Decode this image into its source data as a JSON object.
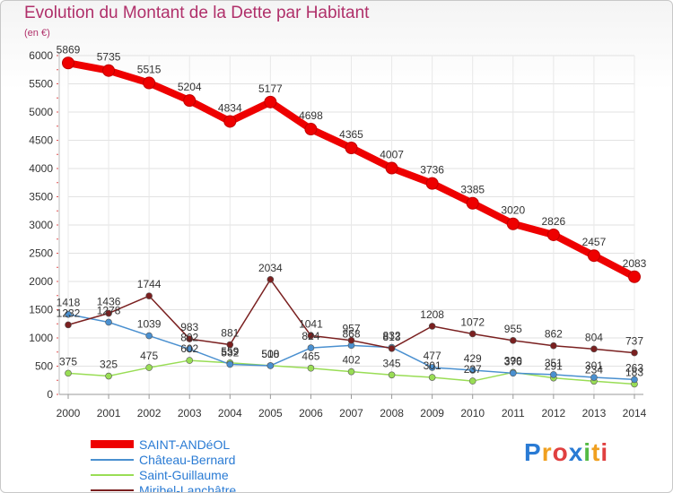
{
  "chart_data": {
    "type": "line",
    "title": "Evolution du Montant de la Dette par Habitant",
    "unit_label": "(en €)",
    "ylim": [
      0,
      6000
    ],
    "y_ticks": [
      0,
      500,
      1000,
      1500,
      2000,
      2500,
      3000,
      3500,
      4000,
      4500,
      5000,
      5500,
      6000
    ],
    "categories": [
      "2000",
      "2001",
      "2002",
      "2003",
      "2004",
      "2005",
      "2006",
      "2007",
      "2008",
      "2009",
      "2010",
      "2011",
      "2012",
      "2013",
      "2014"
    ],
    "series": [
      {
        "name": "SAINT-ANDéOL",
        "color": "#ee0000",
        "values": [
          5869,
          5735,
          5515,
          5204,
          4834,
          5177,
          4698,
          4365,
          4007,
          3736,
          3385,
          3020,
          2826,
          2457,
          2083
        ]
      },
      {
        "name": "Château-Bernard",
        "color": "#4a90d0",
        "values": [
          1418,
          1278,
          1039,
          802,
          532,
          508,
          824,
          868,
          832,
          477,
          429,
          376,
          351,
          301,
          263
        ]
      },
      {
        "name": "Saint-Guillaume",
        "color": "#99dd55",
        "values": [
          375,
          325,
          475,
          602,
          559,
          510,
          465,
          402,
          345,
          301,
          237,
          390,
          291,
          234,
          183
        ]
      },
      {
        "name": "Miribel-Lanchâtre",
        "color": "#7a2020",
        "values": [
          1232,
          1436,
          1744,
          983,
          881,
          2034,
          1041,
          957,
          813,
          1208,
          1072,
          955,
          862,
          804,
          737
        ]
      }
    ]
  },
  "logo": {
    "letters": [
      "P",
      "r",
      "o",
      "x",
      "i",
      "t",
      "i"
    ],
    "colors": [
      "#2a7bd4",
      "#f0a020",
      "#e04040",
      "#2a7bd4",
      "#55bb44",
      "#f0a020",
      "#e04040"
    ]
  }
}
